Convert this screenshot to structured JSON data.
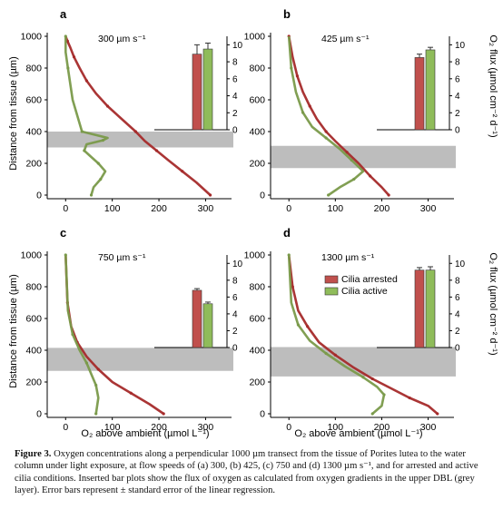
{
  "figure": {
    "shared": {
      "y_axis_label": "Distance from tissue (µm)",
      "x_axis_label": "O₂ above ambient (µmol L⁻¹)",
      "flux_axis_label": "O₂ flux (µmol cm⁻² d⁻¹)",
      "legend": [
        "Cilia arrested",
        "Cilia active"
      ],
      "colors": {
        "arrested": "#a52a2a",
        "active": "#7a9a4a",
        "arrested_bar": "#c0504d",
        "active_bar": "#8fbc5a",
        "dbl": "#bdbdbd"
      }
    }
  },
  "chart_data": [
    {
      "panel": "a",
      "flow": "300 µm s⁻¹",
      "type": "line",
      "xlim": [
        -20,
        340
      ],
      "ylim": [
        0,
        1000
      ],
      "xticks": [
        0,
        100,
        200,
        300
      ],
      "yticks": [
        0,
        200,
        400,
        600,
        800,
        1000
      ],
      "dbl": [
        300,
        400
      ],
      "series": [
        {
          "name": "Cilia arrested",
          "x": [
            310,
            280,
            250,
            220,
            195,
            170,
            150,
            120,
            90,
            65,
            45,
            30,
            18,
            10,
            4,
            0
          ],
          "y": [
            0,
            80,
            150,
            220,
            280,
            340,
            400,
            480,
            560,
            640,
            720,
            800,
            870,
            930,
            970,
            1000
          ]
        },
        {
          "name": "Cilia active",
          "x": [
            55,
            60,
            75,
            85,
            70,
            55,
            40,
            45,
            80,
            90,
            35,
            15,
            5,
            0,
            0
          ],
          "y": [
            0,
            50,
            100,
            150,
            200,
            240,
            280,
            320,
            345,
            360,
            400,
            600,
            800,
            900,
            1000
          ]
        }
      ],
      "flux": {
        "yticks": [
          0,
          2,
          4,
          6,
          8,
          10
        ],
        "ylim": [
          0,
          11
        ],
        "values": [
          8.9,
          9.5
        ],
        "errors": [
          1.1,
          0.7
        ]
      }
    },
    {
      "panel": "b",
      "flow": "425 µm s⁻¹",
      "type": "line",
      "xlim": [
        -20,
        340
      ],
      "ylim": [
        0,
        1000
      ],
      "xticks": [
        0,
        100,
        200,
        300
      ],
      "yticks": [
        0,
        200,
        400,
        600,
        800,
        1000
      ],
      "dbl": [
        170,
        310
      ],
      "series": [
        {
          "name": "Cilia arrested",
          "x": [
            215,
            200,
            175,
            150,
            125,
            100,
            80,
            60,
            45,
            30,
            18,
            8,
            0
          ],
          "y": [
            0,
            50,
            120,
            200,
            270,
            340,
            400,
            480,
            560,
            650,
            750,
            870,
            1000
          ]
        },
        {
          "name": "Cilia active",
          "x": [
            85,
            110,
            140,
            160,
            135,
            110,
            80,
            50,
            30,
            15,
            5,
            0
          ],
          "y": [
            0,
            50,
            100,
            150,
            220,
            290,
            360,
            430,
            520,
            650,
            800,
            1000
          ]
        }
      ],
      "flux": {
        "yticks": [
          0,
          2,
          4,
          6,
          8,
          10
        ],
        "ylim": [
          0,
          11
        ],
        "values": [
          8.5,
          9.4
        ],
        "errors": [
          0.4,
          0.3
        ]
      }
    },
    {
      "panel": "c",
      "flow": "750 µm s⁻¹",
      "type": "line",
      "xlim": [
        -20,
        340
      ],
      "ylim": [
        0,
        1000
      ],
      "xticks": [
        0,
        100,
        200,
        300
      ],
      "yticks": [
        0,
        200,
        400,
        600,
        800,
        1000
      ],
      "dbl": [
        270,
        415
      ],
      "series": [
        {
          "name": "Cilia arrested",
          "x": [
            210,
            180,
            140,
            100,
            70,
            45,
            25,
            12,
            4,
            0
          ],
          "y": [
            0,
            60,
            130,
            200,
            280,
            360,
            450,
            550,
            700,
            1000
          ]
        },
        {
          "name": "Cilia active",
          "x": [
            65,
            70,
            65,
            55,
            45,
            30,
            15,
            5,
            0
          ],
          "y": [
            0,
            100,
            180,
            250,
            320,
            400,
            500,
            650,
            1000
          ]
        }
      ],
      "flux": {
        "yticks": [
          0,
          2,
          4,
          6,
          8,
          10
        ],
        "ylim": [
          0,
          11
        ],
        "values": [
          6.8,
          5.2
        ],
        "errors": [
          0.2,
          0.2
        ]
      }
    },
    {
      "panel": "d",
      "flow": "1300 µm s⁻¹",
      "type": "line",
      "xlim": [
        -20,
        340
      ],
      "ylim": [
        0,
        1000
      ],
      "xticks": [
        0,
        100,
        200,
        300
      ],
      "yticks": [
        0,
        200,
        400,
        600,
        800,
        1000
      ],
      "dbl": [
        235,
        420
      ],
      "series": [
        {
          "name": "Cilia arrested",
          "x": [
            320,
            300,
            260,
            220,
            180,
            140,
            100,
            65,
            40,
            20,
            8,
            0
          ],
          "y": [
            0,
            50,
            100,
            160,
            220,
            290,
            370,
            450,
            550,
            650,
            800,
            1000
          ]
        },
        {
          "name": "Cilia active",
          "x": [
            180,
            200,
            205,
            190,
            160,
            120,
            80,
            45,
            20,
            5,
            0
          ],
          "y": [
            0,
            50,
            120,
            170,
            230,
            300,
            380,
            460,
            560,
            700,
            1000
          ]
        }
      ],
      "flux": {
        "yticks": [
          0,
          2,
          4,
          6,
          8,
          10
        ],
        "ylim": [
          0,
          11
        ],
        "values": [
          9.2,
          9.2
        ],
        "errors": [
          0.3,
          0.4
        ]
      }
    }
  ],
  "caption": {
    "label": "Figure 3.",
    "text": "Oxygen concentrations along a perpendicular 1000 µm transect from the tissue of Porites lutea to the water column under light exposure, at flow speeds of (a) 300, (b) 425, (c) 750 and (d) 1300 µm s⁻¹, and for arrested and active cilia conditions. Inserted bar plots show the flux of oxygen as calculated from oxygen gradients in the upper DBL (grey layer). Error bars represent ± standard error of the linear regression."
  }
}
